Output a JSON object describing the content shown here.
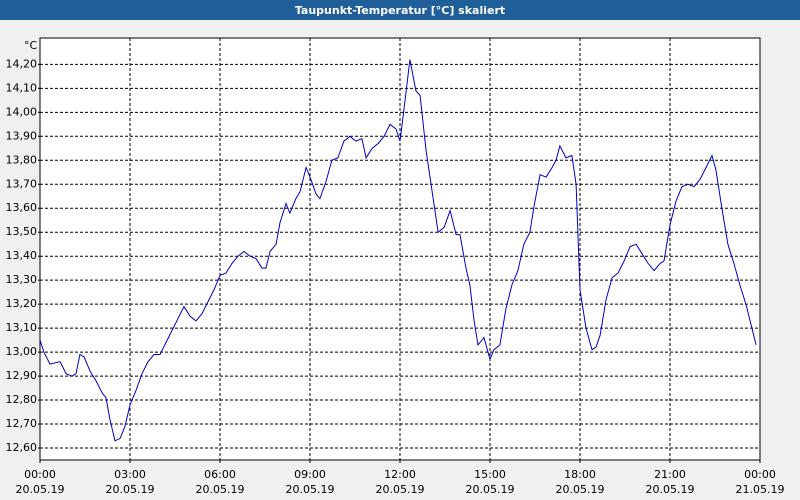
{
  "chart_data": {
    "type": "line",
    "title": "Taupunkt-Temperatur [°C] skaliert",
    "y_unit": "°C",
    "x": [
      0,
      0.13,
      0.33,
      0.67,
      0.87,
      1.07,
      1.2,
      1.33,
      1.47,
      1.67,
      1.87,
      2.07,
      2.2,
      2.33,
      2.5,
      2.67,
      2.83,
      3,
      3.2,
      3.4,
      3.6,
      3.8,
      4,
      4.2,
      4.4,
      4.6,
      4.8,
      5,
      5.2,
      5.4,
      5.6,
      5.8,
      6,
      6.2,
      6.4,
      6.6,
      6.8,
      7,
      7.2,
      7.4,
      7.53,
      7.67,
      7.87,
      8,
      8.2,
      8.33,
      8.53,
      8.67,
      8.87,
      9,
      9.2,
      9.33,
      9.53,
      9.73,
      9.93,
      10.13,
      10.33,
      10.53,
      10.73,
      10.87,
      11.07,
      11.27,
      11.47,
      11.67,
      11.87,
      12,
      12.13,
      12.33,
      12.53,
      12.67,
      12.87,
      13.07,
      13.27,
      13.47,
      13.67,
      13.87,
      14,
      14.2,
      14.33,
      14.47,
      14.6,
      14.8,
      15,
      15.13,
      15.33,
      15.53,
      15.73,
      15.93,
      16.13,
      16.33,
      16.47,
      16.67,
      16.87,
      17.07,
      17.2,
      17.33,
      17.53,
      17.73,
      17.87,
      18,
      18.2,
      18.4,
      18.53,
      18.67,
      18.87,
      19.07,
      19.27,
      19.47,
      19.67,
      19.87,
      20.07,
      20.27,
      20.47,
      20.67,
      20.8,
      21,
      21.2,
      21.4,
      21.6,
      21.8,
      22,
      22.2,
      22.4,
      22.53,
      22.73,
      22.93,
      23.13,
      23.33,
      23.53,
      23.73,
      23.87
    ],
    "series": [
      {
        "color": "#0000c8",
        "values": [
          13.05,
          13,
          12.95,
          12.96,
          12.91,
          12.9,
          12.91,
          12.99,
          12.98,
          12.92,
          12.88,
          12.83,
          12.81,
          12.72,
          12.63,
          12.64,
          12.69,
          12.78,
          12.84,
          12.91,
          12.96,
          12.99,
          12.99,
          13.04,
          13.09,
          13.14,
          13.19,
          13.15,
          13.13,
          13.16,
          13.21,
          13.26,
          13.32,
          13.33,
          13.37,
          13.4,
          13.42,
          13.4,
          13.39,
          13.35,
          13.35,
          13.42,
          13.45,
          13.54,
          13.62,
          13.58,
          13.64,
          13.67,
          13.77,
          13.73,
          13.66,
          13.64,
          13.71,
          13.8,
          13.81,
          13.88,
          13.9,
          13.88,
          13.89,
          13.81,
          13.85,
          13.87,
          13.9,
          13.95,
          13.93,
          13.88,
          14.01,
          14.22,
          14.09,
          14.07,
          13.84,
          13.67,
          13.5,
          13.52,
          13.59,
          13.49,
          13.49,
          13.35,
          13.28,
          13.13,
          13.03,
          13.06,
          12.97,
          13.01,
          13.03,
          13.18,
          13.28,
          13.34,
          13.45,
          13.5,
          13.61,
          13.74,
          13.73,
          13.77,
          13.8,
          13.86,
          13.81,
          13.82,
          13.7,
          13.26,
          13.1,
          13.01,
          13.02,
          13.07,
          13.22,
          13.31,
          13.33,
          13.38,
          13.44,
          13.45,
          13.41,
          13.37,
          13.34,
          13.37,
          13.38,
          13.53,
          13.63,
          13.69,
          13.7,
          13.69,
          13.72,
          13.77,
          13.82,
          13.76,
          13.6,
          13.45,
          13.37,
          13.28,
          13.2,
          13.1,
          13.03
        ]
      }
    ],
    "xlim": [
      0,
      24
    ],
    "xticks": [
      {
        "value": 0,
        "label": "00:00"
      },
      {
        "value": 3,
        "label": "03:00"
      },
      {
        "value": 6,
        "label": "06:00"
      },
      {
        "value": 9,
        "label": "09:00"
      },
      {
        "value": 12,
        "label": "12:00"
      },
      {
        "value": 15,
        "label": "15:00"
      },
      {
        "value": 18,
        "label": "18:00"
      },
      {
        "value": 21,
        "label": "21:00"
      },
      {
        "value": 24,
        "label": "00:00"
      }
    ],
    "xtick_dates": [
      "20.05.19",
      "20.05.19",
      "20.05.19",
      "20.05.19",
      "20.05.19",
      "20.05.19",
      "20.05.19",
      "20.05.19",
      "21.05.19"
    ],
    "ylim": [
      12.55,
      14.31
    ],
    "yticks": [
      {
        "value": 12.6,
        "label": "12,60"
      },
      {
        "value": 12.7,
        "label": "12,70"
      },
      {
        "value": 12.8,
        "label": "12,80"
      },
      {
        "value": 12.9,
        "label": "12,90"
      },
      {
        "value": 13.0,
        "label": "13,00"
      },
      {
        "value": 13.1,
        "label": "13,10"
      },
      {
        "value": 13.2,
        "label": "13,20"
      },
      {
        "value": 13.3,
        "label": "13,30"
      },
      {
        "value": 13.4,
        "label": "13,40"
      },
      {
        "value": 13.5,
        "label": "13,50"
      },
      {
        "value": 13.6,
        "label": "13,60"
      },
      {
        "value": 13.7,
        "label": "13,70"
      },
      {
        "value": 13.8,
        "label": "13,80"
      },
      {
        "value": 13.9,
        "label": "13,90"
      },
      {
        "value": 14.0,
        "label": "14,00"
      },
      {
        "value": 14.1,
        "label": "14,10"
      },
      {
        "value": 14.2,
        "label": "14,20"
      }
    ],
    "grid": true
  }
}
